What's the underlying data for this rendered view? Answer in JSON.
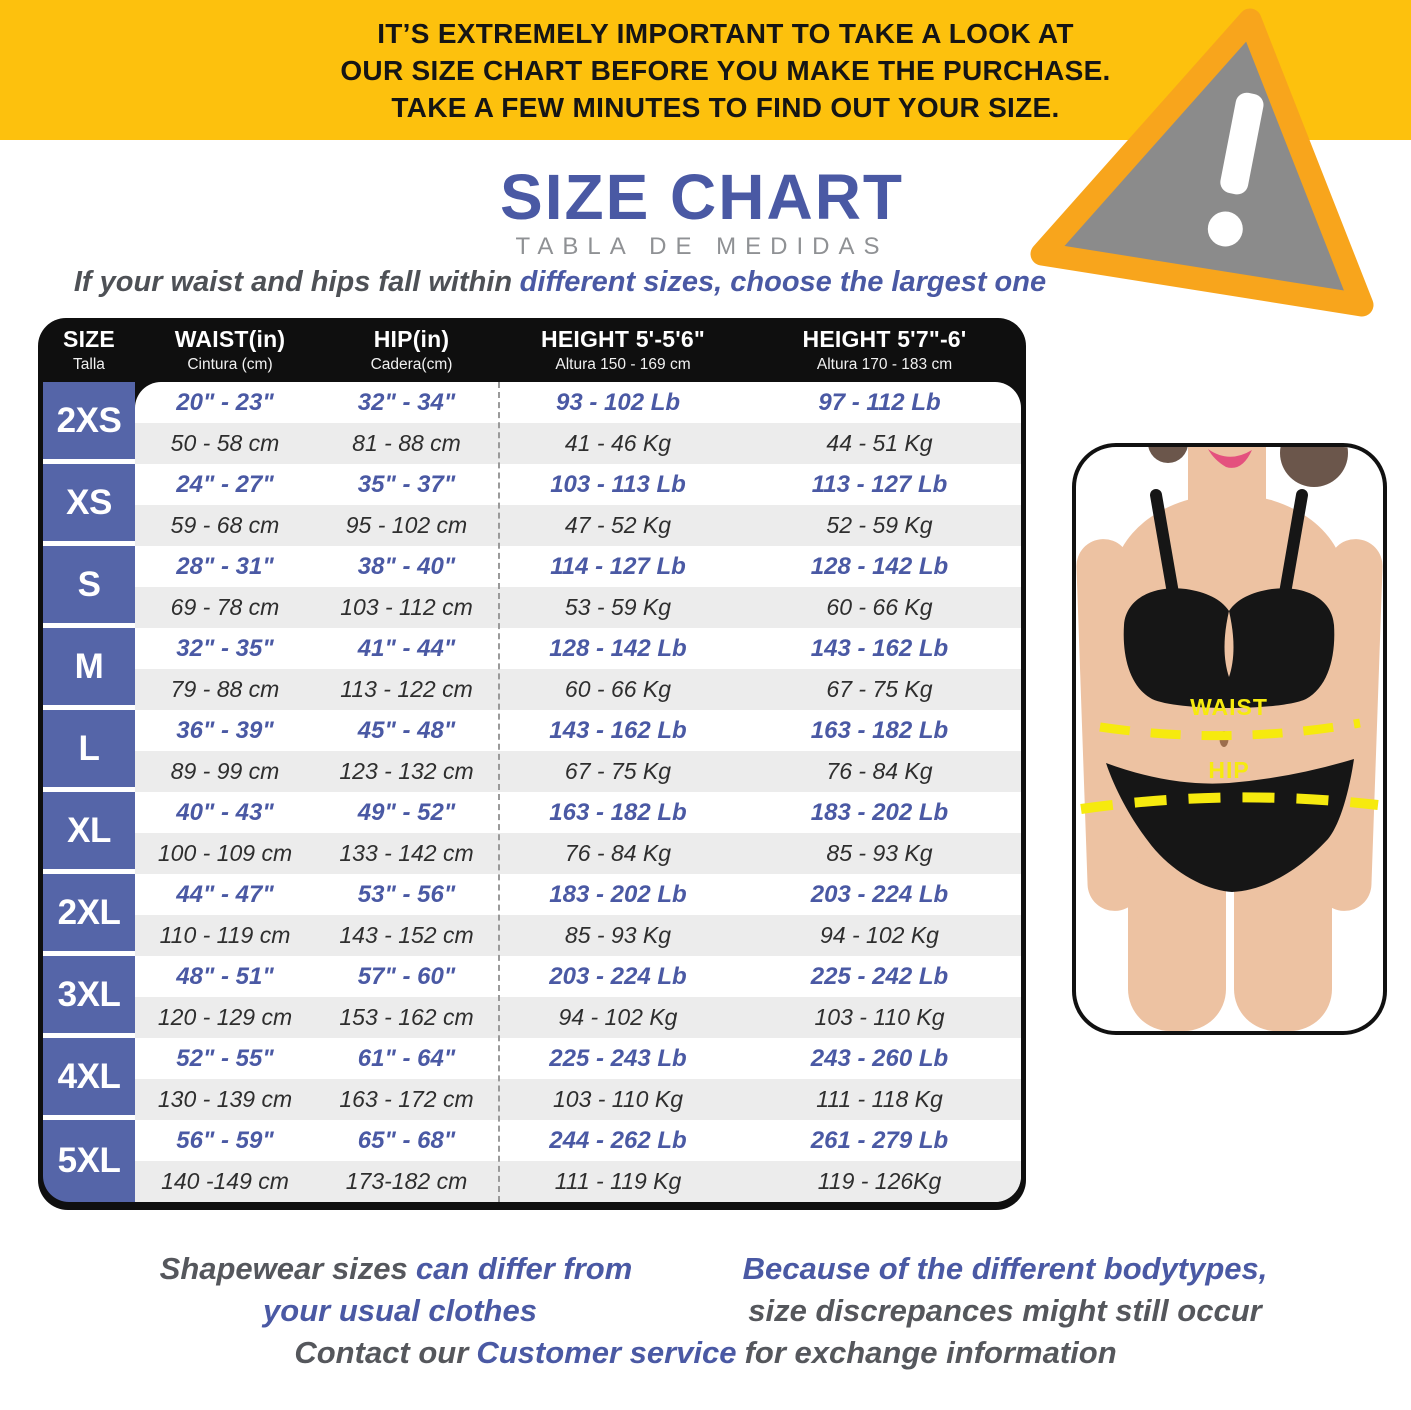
{
  "banner": {
    "line1": "IT’S EXTREMELY IMPORTANT TO TAKE A LOOK AT",
    "line2": "OUR SIZE CHART BEFORE YOU MAKE THE PURCHASE.",
    "line3": "TAKE A FEW MINUTES TO FIND OUT YOUR SIZE."
  },
  "warning_icon": "exclamation-triangle",
  "title": {
    "main": "SIZE CHART",
    "sub": "TABLA DE MEDIDAS"
  },
  "tagline": {
    "gray": "If your waist and hips fall within",
    "blue": "different sizes, choose the largest one"
  },
  "table": {
    "header": {
      "size": {
        "main": "SIZE",
        "sub": "Talla"
      },
      "waist": {
        "main": "WAIST(in)",
        "sub": "Cintura (cm)"
      },
      "hip": {
        "main": "HIP(in)",
        "sub": "Cadera(cm)"
      },
      "height1": {
        "main": "HEIGHT 5'-5'6\"",
        "sub": "Altura 150 - 169 cm"
      },
      "height2": {
        "main": "HEIGHT 5'7\"-6'",
        "sub": "Altura 170 - 183 cm"
      }
    },
    "rows": [
      {
        "size": "2XS",
        "waist_in": "20\" - 23\"",
        "hip_in": "32\" - 34\"",
        "lb_150": "93 - 102 Lb",
        "lb_170": "97 - 112 Lb",
        "waist_cm": "50 - 58 cm",
        "hip_cm": "81 - 88 cm",
        "kg_150": "41 - 46 Kg",
        "kg_170": "44 - 51 Kg"
      },
      {
        "size": "XS",
        "waist_in": "24\" - 27\"",
        "hip_in": "35\" - 37\"",
        "lb_150": "103 - 113 Lb",
        "lb_170": "113 - 127 Lb",
        "waist_cm": "59 - 68 cm",
        "hip_cm": "95 - 102 cm",
        "kg_150": "47 - 52 Kg",
        "kg_170": "52 - 59 Kg"
      },
      {
        "size": "S",
        "waist_in": "28\" - 31\"",
        "hip_in": "38\" - 40\"",
        "lb_150": "114 - 127 Lb",
        "lb_170": "128 - 142 Lb",
        "waist_cm": "69 - 78 cm",
        "hip_cm": "103 - 112 cm",
        "kg_150": "53 - 59 Kg",
        "kg_170": "60 - 66 Kg"
      },
      {
        "size": "M",
        "waist_in": "32\" - 35\"",
        "hip_in": "41\" - 44\"",
        "lb_150": "128 - 142 Lb",
        "lb_170": "143 - 162 Lb",
        "waist_cm": "79 - 88 cm",
        "hip_cm": "113 - 122 cm",
        "kg_150": "60 - 66 Kg",
        "kg_170": "67 - 75 Kg"
      },
      {
        "size": "L",
        "waist_in": "36\" - 39\"",
        "hip_in": "45\" - 48\"",
        "lb_150": "143 - 162 Lb",
        "lb_170": "163 - 182 Lb",
        "waist_cm": "89 - 99 cm",
        "hip_cm": "123 - 132 cm",
        "kg_150": "67 - 75 Kg",
        "kg_170": "76 - 84 Kg"
      },
      {
        "size": "XL",
        "waist_in": "40\" - 43\"",
        "hip_in": "49\" - 52\"",
        "lb_150": "163 - 182 Lb",
        "lb_170": "183 - 202 Lb",
        "waist_cm": "100 - 109 cm",
        "hip_cm": "133 - 142 cm",
        "kg_150": "76 - 84 Kg",
        "kg_170": "85 - 93 Kg"
      },
      {
        "size": "2XL",
        "waist_in": "44\" - 47\"",
        "hip_in": "53\" - 56\"",
        "lb_150": "183 - 202 Lb",
        "lb_170": "203 - 224 Lb",
        "waist_cm": "110 - 119 cm",
        "hip_cm": "143 - 152 cm",
        "kg_150": "85 - 93 Kg",
        "kg_170": "94 - 102 Kg"
      },
      {
        "size": "3XL",
        "waist_in": "48\" - 51\"",
        "hip_in": "57\" - 60\"",
        "lb_150": "203 - 224 Lb",
        "lb_170": "225 - 242 Lb",
        "waist_cm": "120 - 129 cm",
        "hip_cm": "153 - 162 cm",
        "kg_150": "94 - 102 Kg",
        "kg_170": "103 - 110 Kg"
      },
      {
        "size": "4XL",
        "waist_in": "52\" - 55\"",
        "hip_in": "61\" - 64\"",
        "lb_150": "225 - 243 Lb",
        "lb_170": "243 - 260 Lb",
        "waist_cm": "130 - 139 cm",
        "hip_cm": "163 - 172 cm",
        "kg_150": "103 - 110 Kg",
        "kg_170": "111 - 118 Kg"
      },
      {
        "size": "5XL",
        "waist_in": "56\" - 59\"",
        "hip_in": "65\" - 68\"",
        "lb_150": "244 - 262 Lb",
        "lb_170": "261 - 279 Lb",
        "waist_cm": "140 -149 cm",
        "hip_cm": "173-182 cm",
        "kg_150": "111 - 119 Kg",
        "kg_170": "119 - 126Kg"
      }
    ]
  },
  "figure": {
    "waist_label": "WAIST",
    "hip_label": "HIP"
  },
  "footer": {
    "left_gray": "Shapewear sizes",
    "left_blue_1": "can differ from",
    "left_blue_2": "your usual clothes",
    "right_blue": "Because of the different bodytypes,",
    "right_gray": "size discrepances  might still occur",
    "contact_gray_1": "Contact our",
    "contact_blue": "Customer service",
    "contact_gray_2": "for exchange information"
  },
  "colors": {
    "accent_blue": "#4a59a4",
    "banner_yellow": "#fdc10d",
    "triangle_orange": "#f8a51c",
    "triangle_gray": "#8b8b8b",
    "size_column_blue": "#5565a8",
    "row_alt_gray": "#ececec",
    "header_black": "#0f0f0f",
    "text_dark": "#2e2e2e",
    "text_gray": "#55575c",
    "highlight_yellow": "#f6ea0e"
  }
}
